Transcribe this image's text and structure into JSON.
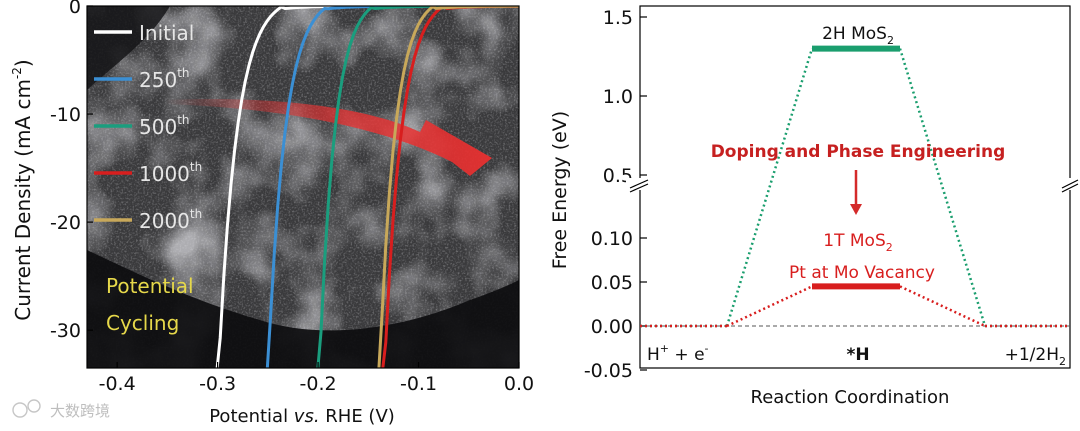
{
  "chart_data": [
    {
      "type": "line",
      "xlabel_prefix": "Potential ",
      "xlabel_italic": "vs.",
      "xlabel_suffix": " RHE (V)",
      "ylabel": "Current Density (mA cm",
      "ylabel_exp": "-2",
      "ylabel_close": ")",
      "xlim": [
        -0.43,
        0.0
      ],
      "ylim": [
        -33.5,
        0
      ],
      "xticks": [
        -0.4,
        -0.3,
        -0.2,
        -0.1,
        0.0
      ],
      "xtick_labels": [
        "-0.4",
        "-0.3",
        "-0.2",
        "-0.1",
        "0.0"
      ],
      "yticks": [
        0,
        -10,
        -20,
        -30
      ],
      "ytick_labels": [
        "0",
        "-10",
        "-20",
        "-30"
      ],
      "series": [
        {
          "name": "Initial",
          "sup": "",
          "color": "#ffffff",
          "onset": -0.235,
          "at_minus30": -0.297
        },
        {
          "name": "250",
          "sup": "th",
          "color": "#3b8fd4",
          "onset": -0.19,
          "at_minus30": -0.248
        },
        {
          "name": "500",
          "sup": "th",
          "color": "#1a9e7e",
          "onset": -0.145,
          "at_minus30": -0.197
        },
        {
          "name": "1000",
          "sup": "th",
          "color": "#d81e1e",
          "onset": -0.075,
          "at_minus30": -0.132
        },
        {
          "name": "2000",
          "sup": "th",
          "color": "#c8a85a",
          "onset": -0.085,
          "at_minus30": -0.137
        }
      ],
      "annotation": [
        "Potential",
        "Cycling"
      ],
      "annotation_color": "#e6d84a",
      "arrow_color": "#e83030"
    },
    {
      "type": "line",
      "xlabel": "Reaction Coordination",
      "ylabel": "Free Energy (eV)",
      "upper_yticks": [
        1.5,
        1.0,
        0.5
      ],
      "upper_ytick_labels": [
        "1.5",
        "1.0",
        "0.5"
      ],
      "lower_yticks": [
        0.1,
        0.05,
        0.0,
        -0.05
      ],
      "lower_ytick_labels": [
        "0.10",
        "0.05",
        "0.00",
        "-0.05"
      ],
      "states": [
        {
          "label": "H",
          "label_sup": "+",
          "label_mid": " + e",
          "label_sup2": "-"
        },
        {
          "label": "*H"
        },
        {
          "label": "+1/2H",
          "label_sub": "2"
        }
      ],
      "series": [
        {
          "name": "2H MoS",
          "name_sub": "2",
          "color": "#1a9e6e",
          "values": [
            0.0,
            1.3,
            0.0
          ]
        },
        {
          "name": "1T MoS",
          "name_sub": "2",
          "name_line2": "Pt at Mo Vacancy",
          "color": "#d81e1e",
          "values": [
            0.0,
            0.045,
            0.0
          ]
        }
      ],
      "annotation": "Doping and Phase Engineering",
      "annotation_color": "#c62020"
    }
  ],
  "watermark": "大数跨境"
}
